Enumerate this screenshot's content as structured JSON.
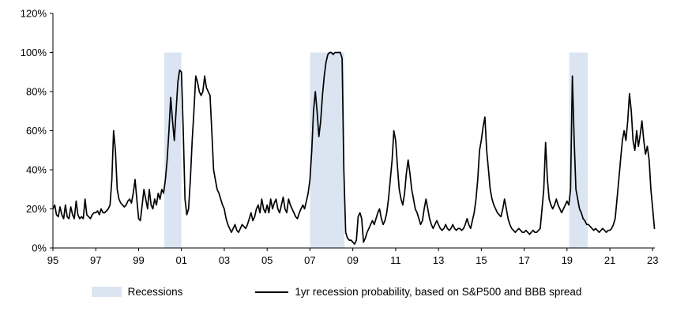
{
  "colors": {
    "background": "#ffffff",
    "band": "#dbe5f1",
    "line": "#000000",
    "axis": "#000000",
    "text": "#000000"
  },
  "chart_data": {
    "type": "line",
    "title": "",
    "xlabel": "",
    "ylabel": "",
    "grid": false,
    "xlim": [
      1995,
      2023.1
    ],
    "ylim": [
      0,
      120
    ],
    "band_top": 100,
    "x_ticks": [
      1995,
      1997,
      1999,
      2001,
      2003,
      2005,
      2007,
      2009,
      2011,
      2013,
      2015,
      2017,
      2019,
      2021,
      2023
    ],
    "x_tick_labels": [
      "95",
      "97",
      "99",
      "01",
      "03",
      "05",
      "07",
      "09",
      "11",
      "13",
      "15",
      "17",
      "19",
      "21",
      "23"
    ],
    "y_ticks": [
      0,
      20,
      40,
      60,
      80,
      100,
      120
    ],
    "y_tick_labels": [
      "0%",
      "20%",
      "40%",
      "60%",
      "80%",
      "100%",
      "120%"
    ],
    "recession_bands": [
      [
        2000.2,
        2001.0
      ],
      [
        2007.0,
        2008.6
      ],
      [
        2019.1,
        2019.97
      ]
    ],
    "series": [
      {
        "name": "1yr recession probability, based on S&P500 and BBB spread",
        "x_start": 1995,
        "frequency": "monthly",
        "values": [
          20,
          22,
          17,
          16,
          21,
          17,
          15,
          22,
          16,
          15,
          21,
          17,
          15,
          24,
          17,
          15,
          16,
          15,
          25,
          17,
          16,
          15,
          17,
          18,
          18,
          19,
          17,
          20,
          18,
          18,
          19,
          20,
          22,
          35,
          60,
          50,
          30,
          25,
          23,
          22,
          21,
          22,
          24,
          25,
          23,
          28,
          35,
          25,
          15,
          14,
          22,
          30,
          25,
          20,
          30,
          22,
          20,
          25,
          22,
          28,
          25,
          30,
          28,
          35,
          45,
          60,
          77,
          65,
          55,
          70,
          85,
          91,
          90,
          60,
          25,
          17,
          20,
          35,
          55,
          70,
          88,
          85,
          80,
          78,
          80,
          88,
          82,
          80,
          78,
          60,
          40,
          35,
          30,
          28,
          25,
          22,
          20,
          15,
          12,
          10,
          8,
          10,
          12,
          9,
          8,
          10,
          12,
          11,
          10,
          12,
          15,
          18,
          14,
          16,
          20,
          22,
          18,
          25,
          20,
          18,
          22,
          18,
          25,
          20,
          23,
          25,
          20,
          18,
          22,
          26,
          20,
          18,
          25,
          22,
          20,
          18,
          16,
          15,
          18,
          20,
          22,
          20,
          24,
          28,
          35,
          50,
          70,
          80,
          70,
          57,
          65,
          78,
          88,
          95,
          99,
          100,
          100,
          99,
          100,
          100,
          100,
          100,
          97,
          40,
          8,
          5,
          4,
          4,
          3,
          2,
          4,
          16,
          18,
          15,
          3,
          5,
          8,
          10,
          12,
          14,
          12,
          15,
          18,
          20,
          15,
          12,
          14,
          18,
          25,
          35,
          45,
          60,
          55,
          42,
          30,
          25,
          22,
          28,
          38,
          45,
          38,
          30,
          25,
          20,
          18,
          15,
          12,
          14,
          20,
          25,
          20,
          15,
          12,
          10,
          12,
          14,
          12,
          10,
          9,
          10,
          12,
          10,
          9,
          10,
          12,
          10,
          9,
          10,
          10,
          9,
          10,
          12,
          15,
          12,
          10,
          14,
          18,
          25,
          35,
          50,
          55,
          62,
          67,
          50,
          40,
          30,
          25,
          22,
          20,
          18,
          17,
          16,
          20,
          25,
          20,
          15,
          12,
          10,
          9,
          8,
          9,
          10,
          9,
          8,
          8,
          9,
          8,
          7,
          8,
          9,
          8,
          8,
          9,
          10,
          20,
          30,
          54,
          35,
          25,
          22,
          20,
          22,
          25,
          22,
          20,
          18,
          20,
          22,
          24,
          22,
          30,
          88,
          55,
          30,
          25,
          20,
          18,
          15,
          14,
          12,
          12,
          11,
          10,
          9,
          10,
          9,
          8,
          9,
          10,
          9,
          8,
          9,
          9,
          10,
          12,
          15,
          25,
          35,
          45,
          55,
          60,
          55,
          65,
          79,
          70,
          55,
          50,
          60,
          52,
          58,
          65,
          55,
          48,
          52,
          45,
          30,
          20,
          10
        ]
      }
    ],
    "legend": {
      "position": "bottom",
      "items": [
        {
          "label": "Recessions",
          "type": "band",
          "color": "#dbe5f1"
        },
        {
          "label": "1yr recession probability, based on S&P500 and BBB spread",
          "type": "line",
          "color": "#000000"
        }
      ]
    }
  }
}
